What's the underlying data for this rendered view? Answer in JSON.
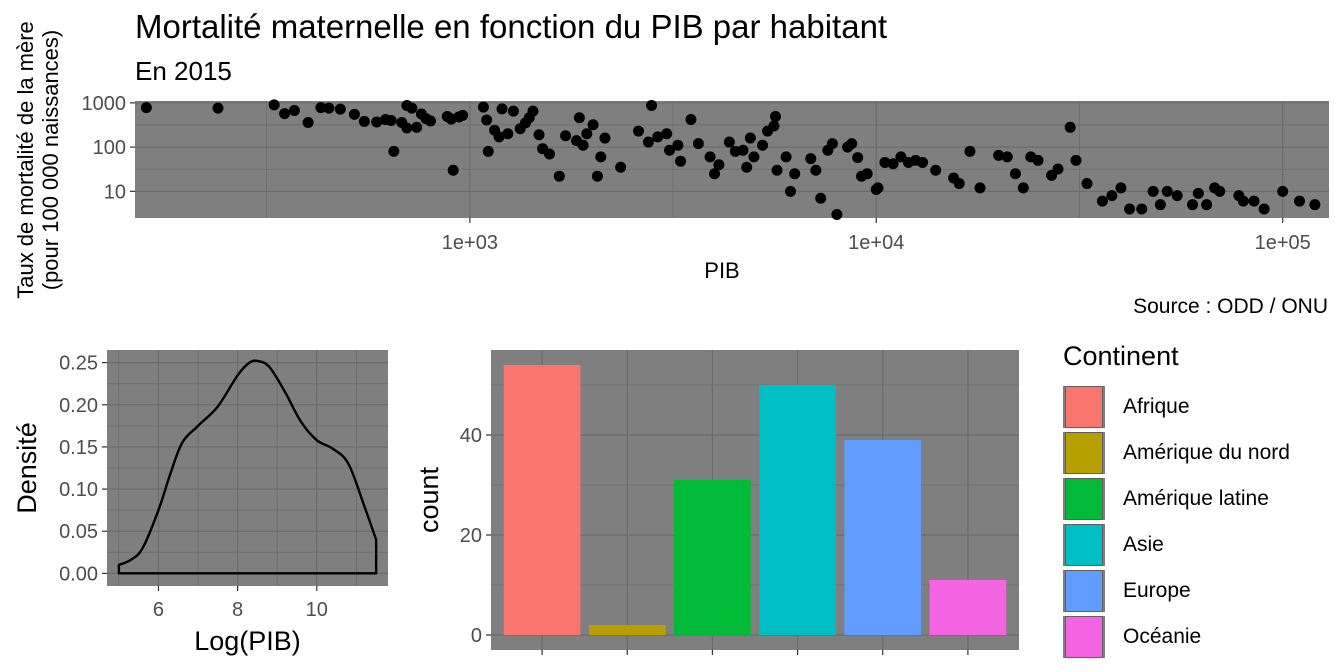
{
  "title": "Mortalité maternelle en fonction du PIB par habitant",
  "subtitle": "En 2015",
  "caption": "Source : ODD / ONU",
  "colors": {
    "panel": "#7f7f7f",
    "grid": "#6b6b6b",
    "point": "#000000"
  },
  "chart_data": [
    {
      "type": "scatter",
      "xlabel": "PIB",
      "ylabel": [
        "Taux de mortalité de la mère",
        "(pour 100 000 naissances)"
      ],
      "x_scale": "log10",
      "y_scale": "log10",
      "xlim": [
        150,
        130000
      ],
      "ylim": [
        2.5,
        1100
      ],
      "x_ticks": [
        1000,
        10000,
        100000
      ],
      "x_tick_labels": [
        "1e+03",
        "1e+04",
        "1e+05"
      ],
      "y_ticks": [
        10,
        100,
        1000
      ],
      "y_tick_labels": [
        "10",
        "100",
        "1000"
      ],
      "grid": true,
      "points": [
        [
          160,
          780
        ],
        [
          240,
          760
        ],
        [
          330,
          900
        ],
        [
          350,
          570
        ],
        [
          370,
          670
        ],
        [
          400,
          360
        ],
        [
          430,
          780
        ],
        [
          450,
          760
        ],
        [
          480,
          720
        ],
        [
          520,
          550
        ],
        [
          550,
          380
        ],
        [
          590,
          370
        ],
        [
          620,
          420
        ],
        [
          640,
          400
        ],
        [
          650,
          80
        ],
        [
          680,
          360
        ],
        [
          700,
          870
        ],
        [
          700,
          270
        ],
        [
          720,
          760
        ],
        [
          740,
          280
        ],
        [
          760,
          560
        ],
        [
          780,
          440
        ],
        [
          800,
          390
        ],
        [
          880,
          490
        ],
        [
          900,
          430
        ],
        [
          910,
          30
        ],
        [
          940,
          480
        ],
        [
          960,
          520
        ],
        [
          1080,
          800
        ],
        [
          1100,
          410
        ],
        [
          1110,
          80
        ],
        [
          1150,
          240
        ],
        [
          1180,
          170
        ],
        [
          1200,
          730
        ],
        [
          1240,
          200
        ],
        [
          1280,
          650
        ],
        [
          1330,
          260
        ],
        [
          1370,
          350
        ],
        [
          1400,
          460
        ],
        [
          1430,
          650
        ],
        [
          1480,
          190
        ],
        [
          1510,
          92
        ],
        [
          1570,
          70
        ],
        [
          1660,
          22
        ],
        [
          1720,
          180
        ],
        [
          1830,
          140
        ],
        [
          1860,
          460
        ],
        [
          1900,
          110
        ],
        [
          1940,
          200
        ],
        [
          2010,
          320
        ],
        [
          2060,
          22
        ],
        [
          2100,
          60
        ],
        [
          2150,
          160
        ],
        [
          2350,
          35
        ],
        [
          2600,
          230
        ],
        [
          2750,
          130
        ],
        [
          2800,
          870
        ],
        [
          2900,
          170
        ],
        [
          3050,
          200
        ],
        [
          3100,
          85
        ],
        [
          3250,
          110
        ],
        [
          3300,
          48
        ],
        [
          3500,
          420
        ],
        [
          3650,
          120
        ],
        [
          3900,
          60
        ],
        [
          4000,
          25
        ],
        [
          4100,
          40
        ],
        [
          4350,
          130
        ],
        [
          4500,
          80
        ],
        [
          4700,
          85
        ],
        [
          4800,
          35
        ],
        [
          4900,
          160
        ],
        [
          5000,
          60
        ],
        [
          5250,
          110
        ],
        [
          5400,
          230
        ],
        [
          5600,
          300
        ],
        [
          5650,
          490
        ],
        [
          5700,
          30
        ],
        [
          6000,
          60
        ],
        [
          6150,
          10
        ],
        [
          6300,
          25
        ],
        [
          6900,
          55
        ],
        [
          7100,
          30
        ],
        [
          7300,
          7
        ],
        [
          7600,
          85
        ],
        [
          7800,
          120
        ],
        [
          8000,
          3
        ],
        [
          8500,
          100
        ],
        [
          8700,
          120
        ],
        [
          9000,
          58
        ],
        [
          9200,
          22
        ],
        [
          9500,
          25
        ],
        [
          10000,
          11
        ],
        [
          10100,
          12
        ],
        [
          10500,
          45
        ],
        [
          11000,
          42
        ],
        [
          11500,
          60
        ],
        [
          12000,
          45
        ],
        [
          12500,
          50
        ],
        [
          13000,
          45
        ],
        [
          14000,
          30
        ],
        [
          15500,
          20
        ],
        [
          16000,
          15
        ],
        [
          17000,
          80
        ],
        [
          18000,
          12
        ],
        [
          20000,
          65
        ],
        [
          21000,
          60
        ],
        [
          22000,
          25
        ],
        [
          23000,
          12
        ],
        [
          24000,
          60
        ],
        [
          25000,
          50
        ],
        [
          27000,
          23
        ],
        [
          28000,
          32
        ],
        [
          30000,
          280
        ],
        [
          31000,
          50
        ],
        [
          33000,
          15
        ],
        [
          36000,
          6
        ],
        [
          38000,
          8
        ],
        [
          40000,
          12
        ],
        [
          42000,
          4
        ],
        [
          45000,
          4
        ],
        [
          48000,
          10
        ],
        [
          50000,
          5
        ],
        [
          52000,
          10
        ],
        [
          55000,
          8
        ],
        [
          60000,
          5
        ],
        [
          62000,
          9
        ],
        [
          65000,
          5
        ],
        [
          68000,
          12
        ],
        [
          70000,
          10
        ],
        [
          78000,
          8
        ],
        [
          80000,
          6
        ],
        [
          85000,
          6
        ],
        [
          90000,
          4
        ],
        [
          100000,
          10
        ],
        [
          110000,
          6
        ],
        [
          120000,
          5
        ]
      ]
    },
    {
      "type": "area",
      "xlabel": "Log(PIB)",
      "ylabel": "Densité",
      "xlim": [
        4.7,
        11.8
      ],
      "ylim": [
        -0.015,
        0.265
      ],
      "x_ticks": [
        6,
        8,
        10
      ],
      "y_ticks": [
        0.0,
        0.05,
        0.1,
        0.15,
        0.2,
        0.25
      ],
      "y_tick_labels": [
        "0.00",
        "0.05",
        "0.10",
        "0.15",
        "0.20",
        "0.25"
      ],
      "grid": true,
      "x": [
        5.0,
        5.3,
        5.6,
        6.0,
        6.3,
        6.6,
        7.0,
        7.5,
        8.0,
        8.3,
        8.5,
        8.8,
        9.2,
        9.6,
        10.0,
        10.4,
        10.8,
        11.2,
        11.5
      ],
      "y": [
        0.01,
        0.016,
        0.03,
        0.075,
        0.118,
        0.155,
        0.175,
        0.198,
        0.235,
        0.25,
        0.252,
        0.245,
        0.215,
        0.18,
        0.158,
        0.148,
        0.13,
        0.08,
        0.04
      ]
    },
    {
      "type": "bar",
      "xlabel": "",
      "ylabel": "count",
      "ylim": [
        -3,
        57
      ],
      "y_ticks": [
        0,
        20,
        40
      ],
      "grid": true,
      "categories": [
        "Afrique",
        "Amérique du nord",
        "Amérique latine",
        "Asie",
        "Europe",
        "Océanie"
      ],
      "values": [
        54,
        2,
        31,
        50,
        39,
        11
      ],
      "colors": [
        "#F8766D",
        "#B79F00",
        "#00BA38",
        "#00BFC4",
        "#619CFF",
        "#F564E3"
      ]
    }
  ],
  "legend": {
    "title": "Continent",
    "items": [
      {
        "label": "Afrique",
        "color": "#F8766D"
      },
      {
        "label": "Amérique du nord",
        "color": "#B79F00"
      },
      {
        "label": "Amérique latine",
        "color": "#00BA38"
      },
      {
        "label": "Asie",
        "color": "#00BFC4"
      },
      {
        "label": "Europe",
        "color": "#619CFF"
      },
      {
        "label": "Océanie",
        "color": "#F564E3"
      }
    ]
  }
}
